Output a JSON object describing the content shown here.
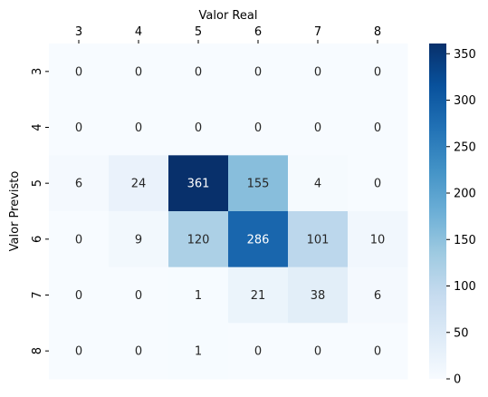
{
  "chart_data": {
    "type": "heatmap",
    "title": "",
    "xlabel": "Valor Real",
    "ylabel": "Valor Previsto",
    "x_position": "top",
    "x_categories": [
      "3",
      "4",
      "5",
      "6",
      "7",
      "8"
    ],
    "y_categories": [
      "3",
      "4",
      "5",
      "6",
      "7",
      "8"
    ],
    "values": [
      [
        0,
        0,
        0,
        0,
        0,
        0
      ],
      [
        0,
        0,
        0,
        0,
        0,
        0
      ],
      [
        6,
        24,
        361,
        155,
        4,
        0
      ],
      [
        0,
        9,
        120,
        286,
        101,
        10
      ],
      [
        0,
        0,
        1,
        21,
        38,
        6
      ],
      [
        0,
        0,
        1,
        0,
        0,
        0
      ]
    ],
    "colormap": "Blues",
    "colorbar": {
      "range": [
        0,
        361
      ],
      "ticks": [
        "0",
        "50",
        "100",
        "150",
        "200",
        "250",
        "300",
        "350"
      ],
      "position": "right"
    },
    "annotations": "cell values shown"
  }
}
